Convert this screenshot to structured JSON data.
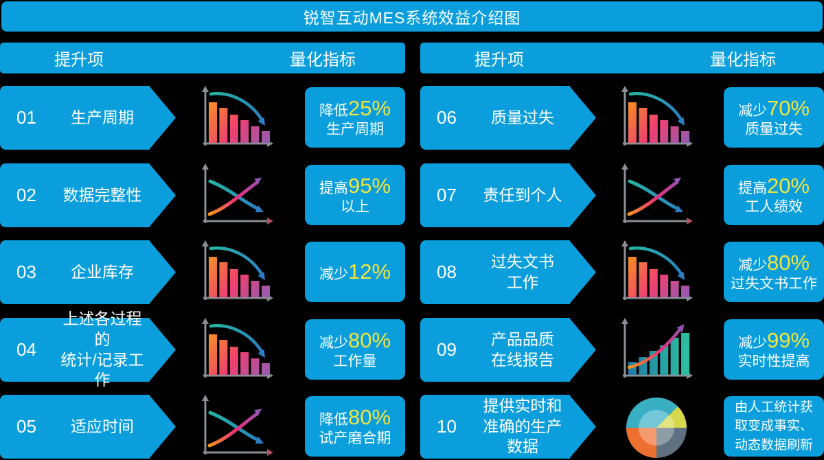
{
  "title": "锐智互动MES系统效益介绍图",
  "colors": {
    "accent": "#0A9FDC",
    "highlight_yellow": "#F2E53D",
    "background": "#000000",
    "text": "#FFFFFF"
  },
  "columns": [
    {
      "headers": {
        "item": "提升项",
        "metric": "量化指标"
      },
      "rows": [
        {
          "number": "01",
          "label": "生产周期",
          "icon": "bars-down-chart-icon",
          "metric": {
            "prefix": "降低",
            "value": "25%",
            "suffix": "生产周期"
          }
        },
        {
          "number": "02",
          "label": "数据完整性",
          "icon": "lines-cross-chart-icon",
          "metric": {
            "prefix": "提高",
            "value": "95%",
            "suffix": "以上"
          }
        },
        {
          "number": "03",
          "label": "企业库存",
          "icon": "bars-down-chart-icon",
          "metric": {
            "prefix": "减少",
            "value": "12%",
            "suffix": ""
          }
        },
        {
          "number": "04",
          "label": "上述各过程的\n统计/记录工作",
          "icon": "bars-down-chart-icon",
          "metric": {
            "prefix": "减少",
            "value": "80%",
            "suffix": "工作量"
          }
        },
        {
          "number": "05",
          "label": "适应时间",
          "icon": "lines-cross-chart-icon",
          "metric": {
            "prefix": "降低",
            "value": "80%",
            "suffix": "试产磨合期"
          }
        }
      ]
    },
    {
      "headers": {
        "item": "提升项",
        "metric": "量化指标"
      },
      "rows": [
        {
          "number": "06",
          "label": "质量过失",
          "icon": "bars-down-chart-icon",
          "metric": {
            "prefix": "减少",
            "value": "70%",
            "suffix": "质量过失"
          }
        },
        {
          "number": "07",
          "label": "责任到个人",
          "icon": "lines-cross-chart-icon",
          "metric": {
            "prefix": "提高",
            "value": "20%",
            "suffix": "工人绩效"
          }
        },
        {
          "number": "08",
          "label": "过失文书\n工作",
          "icon": "bars-down-chart-icon",
          "metric": {
            "prefix": "减少",
            "value": "80%",
            "suffix": "过失文书工作"
          }
        },
        {
          "number": "09",
          "label": "产品品质\n在线报告",
          "icon": "bars-up-chart-icon",
          "metric": {
            "prefix": "减少",
            "value": "99%",
            "suffix": "实时性提高"
          }
        },
        {
          "number": "10",
          "label": "提供实时和\n准确的生产数据",
          "icon": "pie-chart-icon",
          "metric": {
            "prefix": "",
            "value": "",
            "suffix": "由人工统计获\n取变成事实、\n动态数据刷新",
            "text_only": true
          }
        }
      ]
    }
  ]
}
